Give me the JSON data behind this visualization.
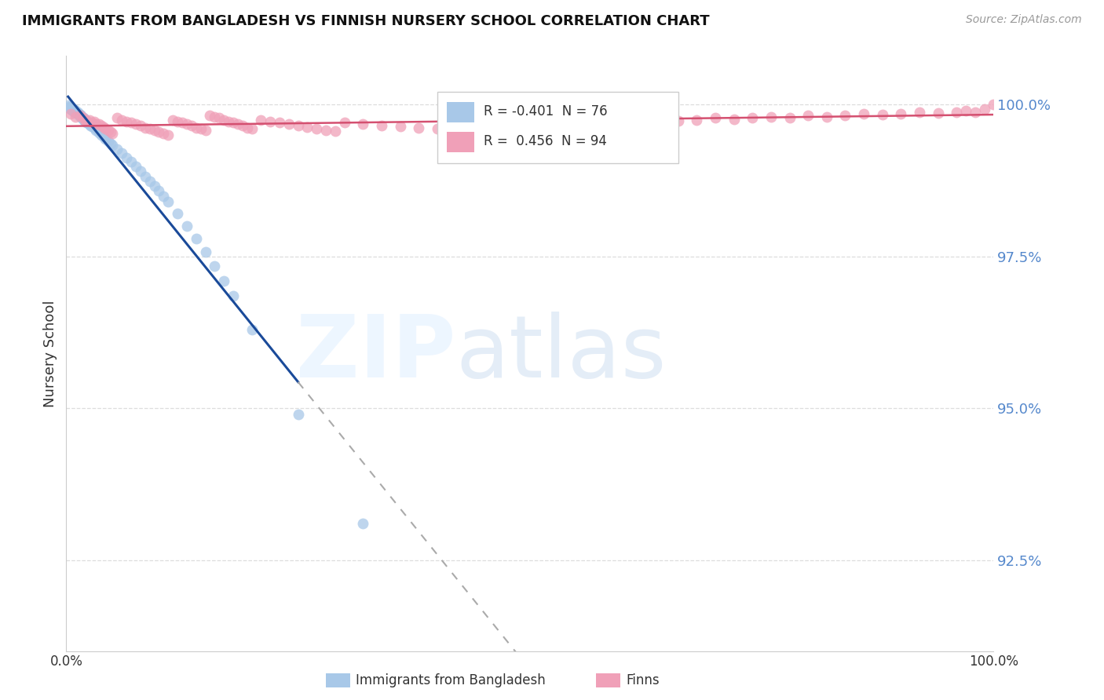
{
  "title": "IMMIGRANTS FROM BANGLADESH VS FINNISH NURSERY SCHOOL CORRELATION CHART",
  "source": "Source: ZipAtlas.com",
  "ylabel": "Nursery School",
  "xlim": [
    0.0,
    1.0
  ],
  "ylim": [
    0.91,
    1.008
  ],
  "yticks": [
    0.925,
    0.95,
    0.975,
    1.0
  ],
  "ytick_labels": [
    "92.5%",
    "95.0%",
    "97.5%",
    "100.0%"
  ],
  "blue_label": "Immigrants from Bangladesh",
  "pink_label": "Finns",
  "blue_R": -0.401,
  "blue_N": 76,
  "pink_R": 0.456,
  "pink_N": 94,
  "blue_color": "#a8c8e8",
  "pink_color": "#f0a0b8",
  "blue_line_color": "#1a4a99",
  "pink_line_color": "#d45070",
  "axis_color": "#5588cc",
  "grid_color": "#dddddd",
  "title_color": "#111111",
  "blue_scatter_x": [
    0.002,
    0.003,
    0.004,
    0.004,
    0.005,
    0.005,
    0.006,
    0.006,
    0.007,
    0.007,
    0.008,
    0.008,
    0.009,
    0.009,
    0.01,
    0.01,
    0.011,
    0.011,
    0.012,
    0.012,
    0.013,
    0.013,
    0.014,
    0.014,
    0.015,
    0.015,
    0.016,
    0.016,
    0.017,
    0.017,
    0.018,
    0.018,
    0.019,
    0.019,
    0.02,
    0.02,
    0.021,
    0.021,
    0.022,
    0.022,
    0.023,
    0.024,
    0.025,
    0.026,
    0.028,
    0.03,
    0.032,
    0.035,
    0.038,
    0.04,
    0.042,
    0.045,
    0.048,
    0.05,
    0.055,
    0.06,
    0.065,
    0.07,
    0.075,
    0.08,
    0.085,
    0.09,
    0.095,
    0.1,
    0.105,
    0.11,
    0.12,
    0.13,
    0.14,
    0.15,
    0.16,
    0.17,
    0.18,
    0.2,
    0.25,
    0.32
  ],
  "blue_scatter_y": [
    0.9999,
    0.9997,
    0.9996,
    0.9994,
    0.9995,
    0.9993,
    0.9993,
    0.9991,
    0.9992,
    0.999,
    0.9992,
    0.9989,
    0.999,
    0.9988,
    0.999,
    0.9988,
    0.9988,
    0.9986,
    0.9987,
    0.9985,
    0.9985,
    0.9983,
    0.9984,
    0.9982,
    0.9983,
    0.9981,
    0.9982,
    0.998,
    0.998,
    0.9978,
    0.9979,
    0.9976,
    0.9977,
    0.9975,
    0.9976,
    0.9973,
    0.9975,
    0.9972,
    0.9973,
    0.997,
    0.9971,
    0.9969,
    0.9968,
    0.9966,
    0.9964,
    0.9961,
    0.9958,
    0.9954,
    0.995,
    0.9947,
    0.9944,
    0.994,
    0.9936,
    0.9933,
    0.9927,
    0.992,
    0.9913,
    0.9906,
    0.9898,
    0.989,
    0.9882,
    0.9874,
    0.9866,
    0.9858,
    0.9849,
    0.984,
    0.9821,
    0.98,
    0.9779,
    0.9757,
    0.9734,
    0.971,
    0.9685,
    0.963,
    0.949,
    0.931
  ],
  "pink_scatter_x": [
    0.005,
    0.01,
    0.015,
    0.018,
    0.02,
    0.022,
    0.025,
    0.028,
    0.03,
    0.032,
    0.035,
    0.038,
    0.04,
    0.042,
    0.045,
    0.048,
    0.05,
    0.055,
    0.06,
    0.065,
    0.07,
    0.075,
    0.08,
    0.085,
    0.09,
    0.095,
    0.1,
    0.105,
    0.11,
    0.115,
    0.12,
    0.125,
    0.13,
    0.135,
    0.14,
    0.145,
    0.15,
    0.155,
    0.16,
    0.165,
    0.17,
    0.175,
    0.18,
    0.185,
    0.19,
    0.195,
    0.2,
    0.21,
    0.22,
    0.23,
    0.24,
    0.25,
    0.26,
    0.27,
    0.28,
    0.29,
    0.3,
    0.32,
    0.34,
    0.36,
    0.38,
    0.4,
    0.42,
    0.44,
    0.46,
    0.48,
    0.5,
    0.52,
    0.54,
    0.56,
    0.58,
    0.6,
    0.62,
    0.64,
    0.66,
    0.68,
    0.7,
    0.72,
    0.74,
    0.76,
    0.78,
    0.8,
    0.82,
    0.84,
    0.86,
    0.88,
    0.9,
    0.92,
    0.94,
    0.96,
    0.97,
    0.98,
    0.99,
    1.0
  ],
  "pink_scatter_y": [
    0.9985,
    0.998,
    0.9982,
    0.9978,
    0.9975,
    0.9973,
    0.9975,
    0.997,
    0.9972,
    0.9968,
    0.9968,
    0.9965,
    0.9963,
    0.996,
    0.9958,
    0.9955,
    0.9953,
    0.9978,
    0.9975,
    0.9972,
    0.997,
    0.9968,
    0.9965,
    0.9962,
    0.996,
    0.9958,
    0.9955,
    0.9952,
    0.995,
    0.9975,
    0.9972,
    0.997,
    0.9968,
    0.9965,
    0.9962,
    0.996,
    0.9958,
    0.9982,
    0.998,
    0.9978,
    0.9975,
    0.9972,
    0.997,
    0.9968,
    0.9965,
    0.9962,
    0.996,
    0.9975,
    0.9972,
    0.997,
    0.9968,
    0.9965,
    0.9963,
    0.996,
    0.9958,
    0.9956,
    0.997,
    0.9968,
    0.9966,
    0.9964,
    0.9962,
    0.996,
    0.9972,
    0.997,
    0.9968,
    0.9966,
    0.997,
    0.9968,
    0.9966,
    0.997,
    0.9968,
    0.9972,
    0.997,
    0.9975,
    0.9973,
    0.9975,
    0.9978,
    0.9976,
    0.9978,
    0.998,
    0.9978,
    0.9982,
    0.998,
    0.9982,
    0.9985,
    0.9983,
    0.9985,
    0.9988,
    0.9986,
    0.9988,
    0.999,
    0.9988,
    0.9992,
    1.0
  ],
  "blue_line_start_x": 0.002,
  "blue_line_end_solid_x": 0.25,
  "blue_line_end_dashed_x": 0.52,
  "pink_line_start_x": 0.0,
  "pink_line_end_x": 1.0
}
